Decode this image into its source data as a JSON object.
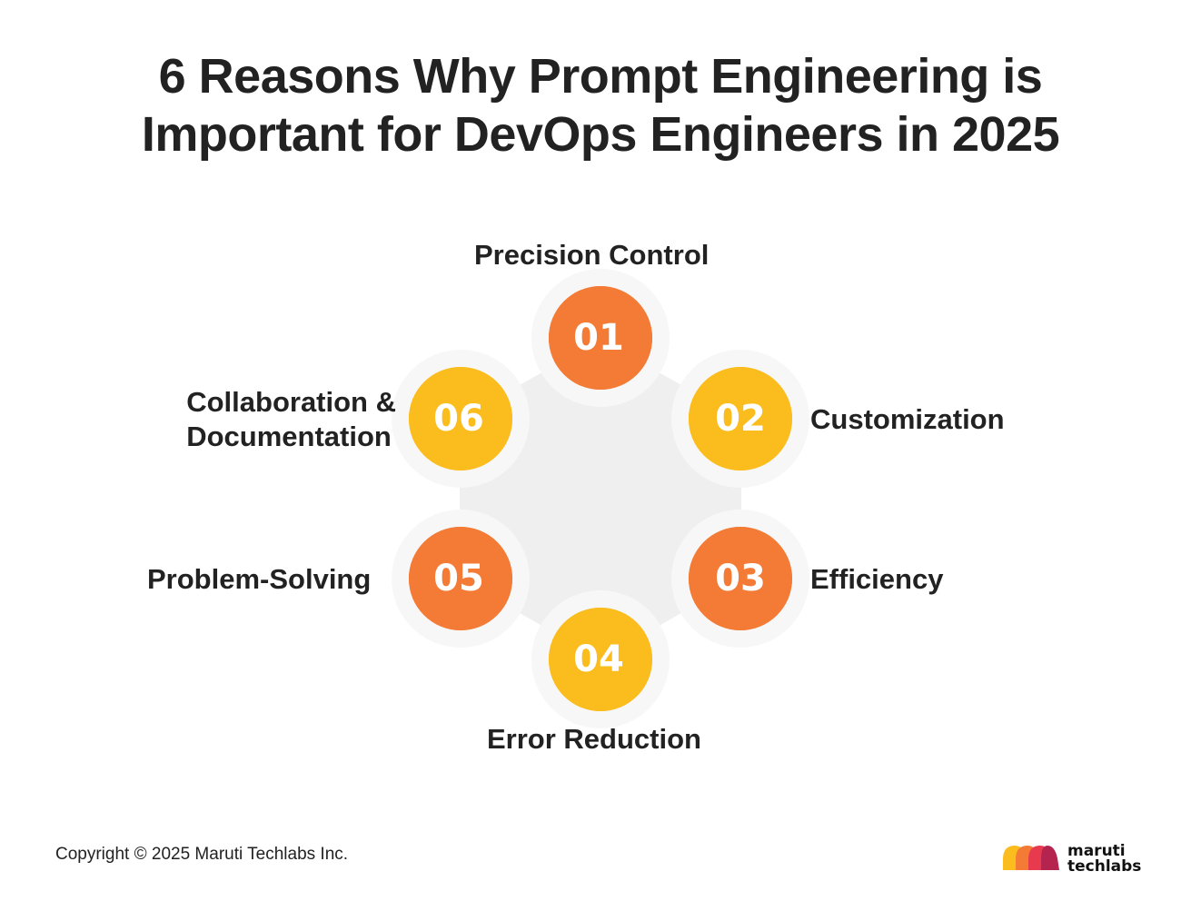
{
  "title": {
    "line1": "6 Reasons Why Prompt Engineering is",
    "line2": "Important for DevOps Engineers in 2025"
  },
  "steps": [
    {
      "number": "01",
      "label": "Precision Control",
      "color": "#f47b36"
    },
    {
      "number": "02",
      "label": "Customization",
      "color": "#fbbd1d"
    },
    {
      "number": "03",
      "label": "Efficiency",
      "color": "#f47b36"
    },
    {
      "number": "04",
      "label": "Error Reduction",
      "color": "#fbbd1d"
    },
    {
      "number": "05",
      "label": "Problem-Solving",
      "color": "#f47b36"
    },
    {
      "number": "06",
      "label_line1": "Collaboration &",
      "label_line2": "Documentation",
      "color": "#fbbd1d"
    }
  ],
  "footer": {
    "copyright": "Copyright © 2025 Maruti Techlabs Inc."
  },
  "logo": {
    "line1": "maruti",
    "line2": "techlabs",
    "colors": [
      "#fbbd1d",
      "#f47b36",
      "#e83a4f",
      "#b5234f"
    ]
  },
  "colors": {
    "orange": "#f47b36",
    "yellow": "#fbbd1d",
    "hexagon": "#efefef",
    "ring": "#f7f7f7"
  }
}
